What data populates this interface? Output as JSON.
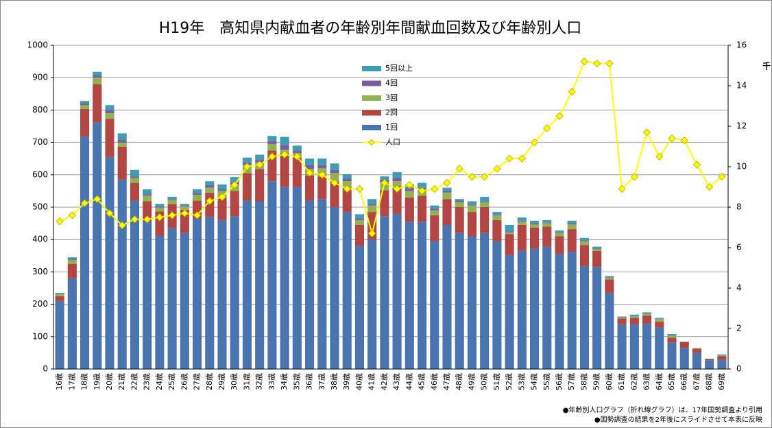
{
  "chart_data": {
    "type": "bar-line",
    "title": "H19年　高知県内献血者の年齢別年間献血回数及び年齢別人口",
    "y2label": "千",
    "categories": [
      "16歳",
      "17歳",
      "18歳",
      "19歳",
      "20歳",
      "21歳",
      "22歳",
      "23歳",
      "24歳",
      "25歳",
      "26歳",
      "27歳",
      "28歳",
      "29歳",
      "30歳",
      "31歳",
      "32歳",
      "33歳",
      "34歳",
      "35歳",
      "36歳",
      "37歳",
      "38歳",
      "39歳",
      "40歳",
      "41歳",
      "42歳",
      "43歳",
      "44歳",
      "45歳",
      "46歳",
      "47歳",
      "48歳",
      "49歳",
      "50歳",
      "51歳",
      "52歳",
      "53歳",
      "54歳",
      "55歳",
      "56歳",
      "57歳",
      "58歳",
      "59歳",
      "60歳",
      "61歳",
      "62歳",
      "63歳",
      "64歳",
      "65歳",
      "66歳",
      "67歳",
      "68歳",
      "69歳"
    ],
    "series": [
      {
        "name": "1回",
        "color": "#4a74b0",
        "values": [
          210,
          280,
          718,
          762,
          655,
          585,
          520,
          458,
          412,
          435,
          420,
          465,
          470,
          460,
          472,
          520,
          518,
          580,
          562,
          562,
          520,
          525,
          500,
          485,
          380,
          400,
          472,
          480,
          455,
          455,
          395,
          445,
          420,
          410,
          420,
          395,
          352,
          365,
          372,
          378,
          355,
          362,
          318,
          315,
          235,
          138,
          138,
          140,
          128,
          82,
          65,
          50,
          26,
          28
        ]
      },
      {
        "name": "2回",
        "color": "#b24643",
        "values": [
          15,
          45,
          85,
          118,
          118,
          102,
          55,
          60,
          75,
          75,
          72,
          55,
          75,
          70,
          78,
          85,
          100,
          95,
          105,
          90,
          78,
          70,
          80,
          75,
          65,
          85,
          80,
          85,
          75,
          80,
          80,
          80,
          80,
          75,
          80,
          65,
          65,
          80,
          65,
          62,
          55,
          70,
          65,
          50,
          42,
          18,
          20,
          25,
          18,
          15,
          18,
          13,
          5,
          12
        ]
      },
      {
        "name": "3回",
        "color": "#93b252",
        "values": [
          7,
          12,
          12,
          20,
          17,
          12,
          15,
          18,
          12,
          12,
          10,
          18,
          15,
          20,
          20,
          25,
          20,
          20,
          10,
          15,
          20,
          25,
          25,
          20,
          15,
          20,
          25,
          15,
          20,
          20,
          15,
          20,
          15,
          20,
          15,
          15,
          5,
          10,
          10,
          10,
          10,
          15,
          12,
          5,
          5,
          3,
          5,
          5,
          8,
          5,
          1,
          1,
          0,
          2
        ]
      },
      {
        "name": "4回",
        "color": "#7c5da0",
        "values": [
          1,
          3,
          5,
          7,
          10,
          10,
          5,
          4,
          3,
          3,
          3,
          5,
          8,
          5,
          8,
          8,
          8,
          10,
          15,
          8,
          12,
          10,
          10,
          8,
          5,
          5,
          8,
          10,
          8,
          5,
          5,
          5,
          5,
          3,
          2,
          3,
          3,
          3,
          3,
          2,
          2,
          3,
          3,
          2,
          1,
          1,
          1,
          1,
          1,
          1,
          0,
          0,
          0,
          0
        ]
      },
      {
        "name": "5回以上",
        "color": "#3f9cb5",
        "values": [
          2,
          5,
          8,
          11,
          15,
          19,
          20,
          15,
          8,
          7,
          5,
          12,
          12,
          15,
          15,
          15,
          16,
          15,
          25,
          15,
          20,
          20,
          20,
          14,
          13,
          15,
          10,
          18,
          12,
          15,
          10,
          10,
          5,
          10,
          15,
          7,
          20,
          10,
          8,
          8,
          6,
          8,
          7,
          6,
          4,
          2,
          4,
          4,
          3,
          5,
          1,
          1,
          1,
          3
        ]
      },
      {
        "name": "人口",
        "color": "#ffff00",
        "axis": "y2",
        "values": [
          7.3,
          7.6,
          8.2,
          8.4,
          7.7,
          7.1,
          7.4,
          7.4,
          7.5,
          7.6,
          7.7,
          7.6,
          8.3,
          8.5,
          9.1,
          10.0,
          10.1,
          10.5,
          10.6,
          10.5,
          9.7,
          9.6,
          9.2,
          8.9,
          8.9,
          6.7,
          9.2,
          8.9,
          9.1,
          8.8,
          8.9,
          9.2,
          9.9,
          9.5,
          9.5,
          9.9,
          10.4,
          10.4,
          11.2,
          11.9,
          12.5,
          13.7,
          15.2,
          15.1,
          15.1,
          8.9,
          9.5,
          11.7,
          10.5,
          11.4,
          11.3,
          10.1,
          9.0,
          9.5
        ]
      }
    ],
    "ylim": [
      0,
      1000
    ],
    "yticks": [
      0,
      100,
      200,
      300,
      400,
      500,
      600,
      700,
      800,
      900,
      1000
    ],
    "y2lim": [
      0,
      16
    ],
    "y2ticks": [
      0,
      2,
      4,
      6,
      8,
      10,
      12,
      14,
      16
    ],
    "grid": true,
    "notes": [
      "●年齢別人口グラフ（折れ線グラフ）は、17年国勢調査より引用",
      "●国勢調査の結果を2年後にスライドさせて本表に反映"
    ]
  }
}
